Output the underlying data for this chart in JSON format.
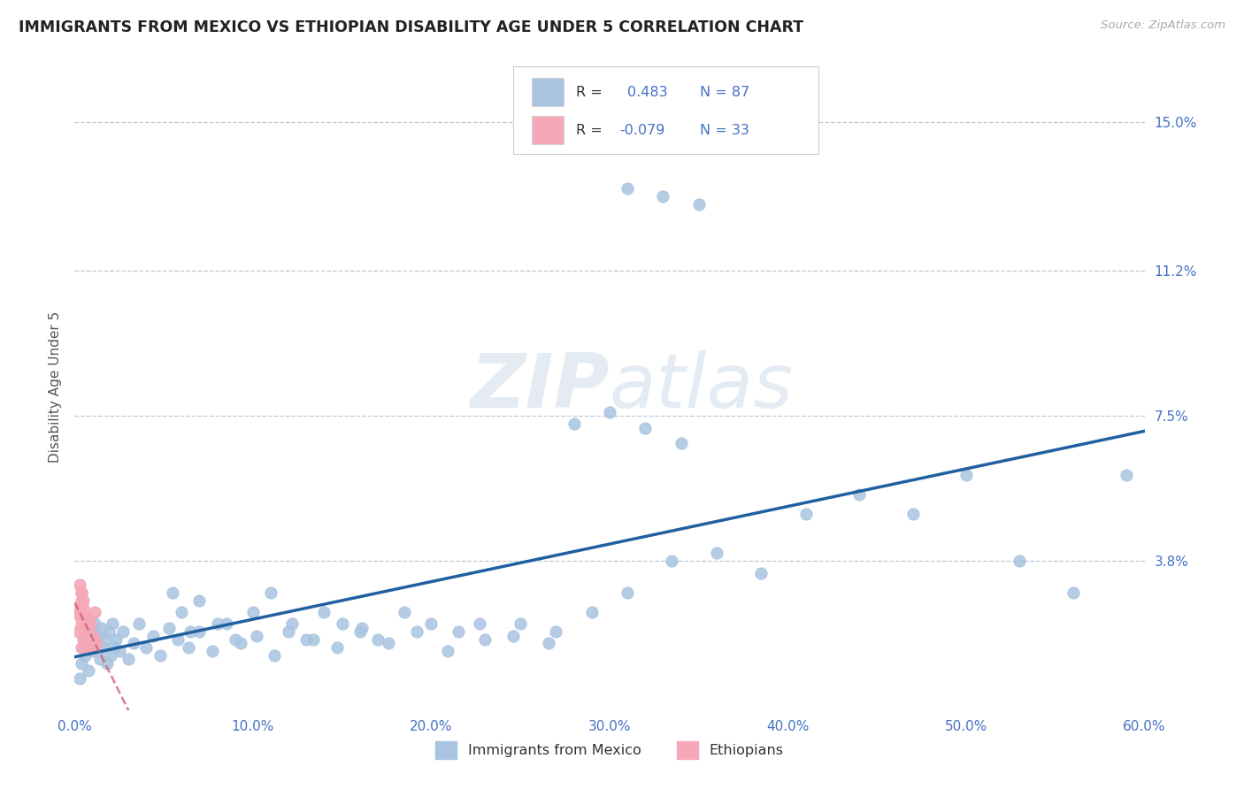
{
  "title": "IMMIGRANTS FROM MEXICO VS ETHIOPIAN DISABILITY AGE UNDER 5 CORRELATION CHART",
  "source": "Source: ZipAtlas.com",
  "ylabel": "Disability Age Under 5",
  "xlim": [
    0.0,
    0.6
  ],
  "ylim": [
    0.0,
    0.165
  ],
  "xtick_positions": [
    0.0,
    0.1,
    0.2,
    0.3,
    0.4,
    0.5,
    0.6
  ],
  "xticklabels": [
    "0.0%",
    "10.0%",
    "20.0%",
    "30.0%",
    "40.0%",
    "50.0%",
    "60.0%"
  ],
  "ytick_positions": [
    0.038,
    0.075,
    0.112,
    0.15
  ],
  "ytick_labels": [
    "3.8%",
    "7.5%",
    "11.2%",
    "15.0%"
  ],
  "legend_r1_label": "R = ",
  "legend_r1_val": "0.483",
  "legend_n1": "N = 87",
  "legend_r2_label": "R = ",
  "legend_r2_val": "-0.079",
  "legend_n2": "N = 33",
  "blue_dot_color": "#a8c4e0",
  "pink_dot_color": "#f4a8b8",
  "blue_line_color": "#2060a0",
  "pink_line_color": "#d06070",
  "legend_text_color": "#4472c4",
  "watermark_color": "#d0dce8",
  "title_color": "#222222",
  "axis_label_color": "#555555",
  "tick_label_color": "#4472c4",
  "grid_color": "#c0c8d4",
  "background_color": "#ffffff",
  "mexico_x": [
    0.003,
    0.004,
    0.005,
    0.006,
    0.007,
    0.008,
    0.009,
    0.01,
    0.011,
    0.012,
    0.013,
    0.014,
    0.015,
    0.016,
    0.017,
    0.018,
    0.019,
    0.02,
    0.021,
    0.022,
    0.023,
    0.025,
    0.027,
    0.03,
    0.033,
    0.036,
    0.04,
    0.044,
    0.048,
    0.053,
    0.058,
    0.064,
    0.07,
    0.077,
    0.085,
    0.093,
    0.102,
    0.112,
    0.122,
    0.134,
    0.147,
    0.161,
    0.176,
    0.192,
    0.209,
    0.227,
    0.246,
    0.266,
    0.055,
    0.06,
    0.065,
    0.07,
    0.08,
    0.09,
    0.1,
    0.11,
    0.12,
    0.13,
    0.14,
    0.15,
    0.16,
    0.17,
    0.185,
    0.2,
    0.215,
    0.23,
    0.25,
    0.27,
    0.29,
    0.31,
    0.335,
    0.36,
    0.385,
    0.41,
    0.44,
    0.47,
    0.5,
    0.53,
    0.56,
    0.59,
    0.31,
    0.33,
    0.35,
    0.28,
    0.3,
    0.32,
    0.34
  ],
  "mexico_y": [
    0.008,
    0.012,
    0.016,
    0.014,
    0.018,
    0.01,
    0.02,
    0.015,
    0.022,
    0.017,
    0.019,
    0.013,
    0.021,
    0.016,
    0.018,
    0.012,
    0.02,
    0.014,
    0.022,
    0.016,
    0.018,
    0.015,
    0.02,
    0.013,
    0.017,
    0.022,
    0.016,
    0.019,
    0.014,
    0.021,
    0.018,
    0.016,
    0.02,
    0.015,
    0.022,
    0.017,
    0.019,
    0.014,
    0.022,
    0.018,
    0.016,
    0.021,
    0.017,
    0.02,
    0.015,
    0.022,
    0.019,
    0.017,
    0.03,
    0.025,
    0.02,
    0.028,
    0.022,
    0.018,
    0.025,
    0.03,
    0.02,
    0.018,
    0.025,
    0.022,
    0.02,
    0.018,
    0.025,
    0.022,
    0.02,
    0.018,
    0.022,
    0.02,
    0.025,
    0.03,
    0.038,
    0.04,
    0.035,
    0.05,
    0.055,
    0.05,
    0.06,
    0.038,
    0.03,
    0.06,
    0.133,
    0.131,
    0.129,
    0.073,
    0.076,
    0.072,
    0.068
  ],
  "ethiopian_x": [
    0.002,
    0.003,
    0.004,
    0.005,
    0.006,
    0.007,
    0.008,
    0.009,
    0.01,
    0.011,
    0.012,
    0.004,
    0.005,
    0.006,
    0.007,
    0.003,
    0.004,
    0.005,
    0.008,
    0.006,
    0.007,
    0.009,
    0.003,
    0.004,
    0.005,
    0.006,
    0.007,
    0.008,
    0.01,
    0.003,
    0.004,
    0.005,
    0.006
  ],
  "ethiopian_y": [
    0.02,
    0.025,
    0.016,
    0.022,
    0.018,
    0.024,
    0.016,
    0.022,
    0.019,
    0.025,
    0.017,
    0.03,
    0.028,
    0.02,
    0.016,
    0.024,
    0.022,
    0.026,
    0.018,
    0.02,
    0.022,
    0.016,
    0.032,
    0.028,
    0.024,
    0.02,
    0.018,
    0.022,
    0.016,
    0.026,
    0.03,
    0.018,
    0.022
  ]
}
